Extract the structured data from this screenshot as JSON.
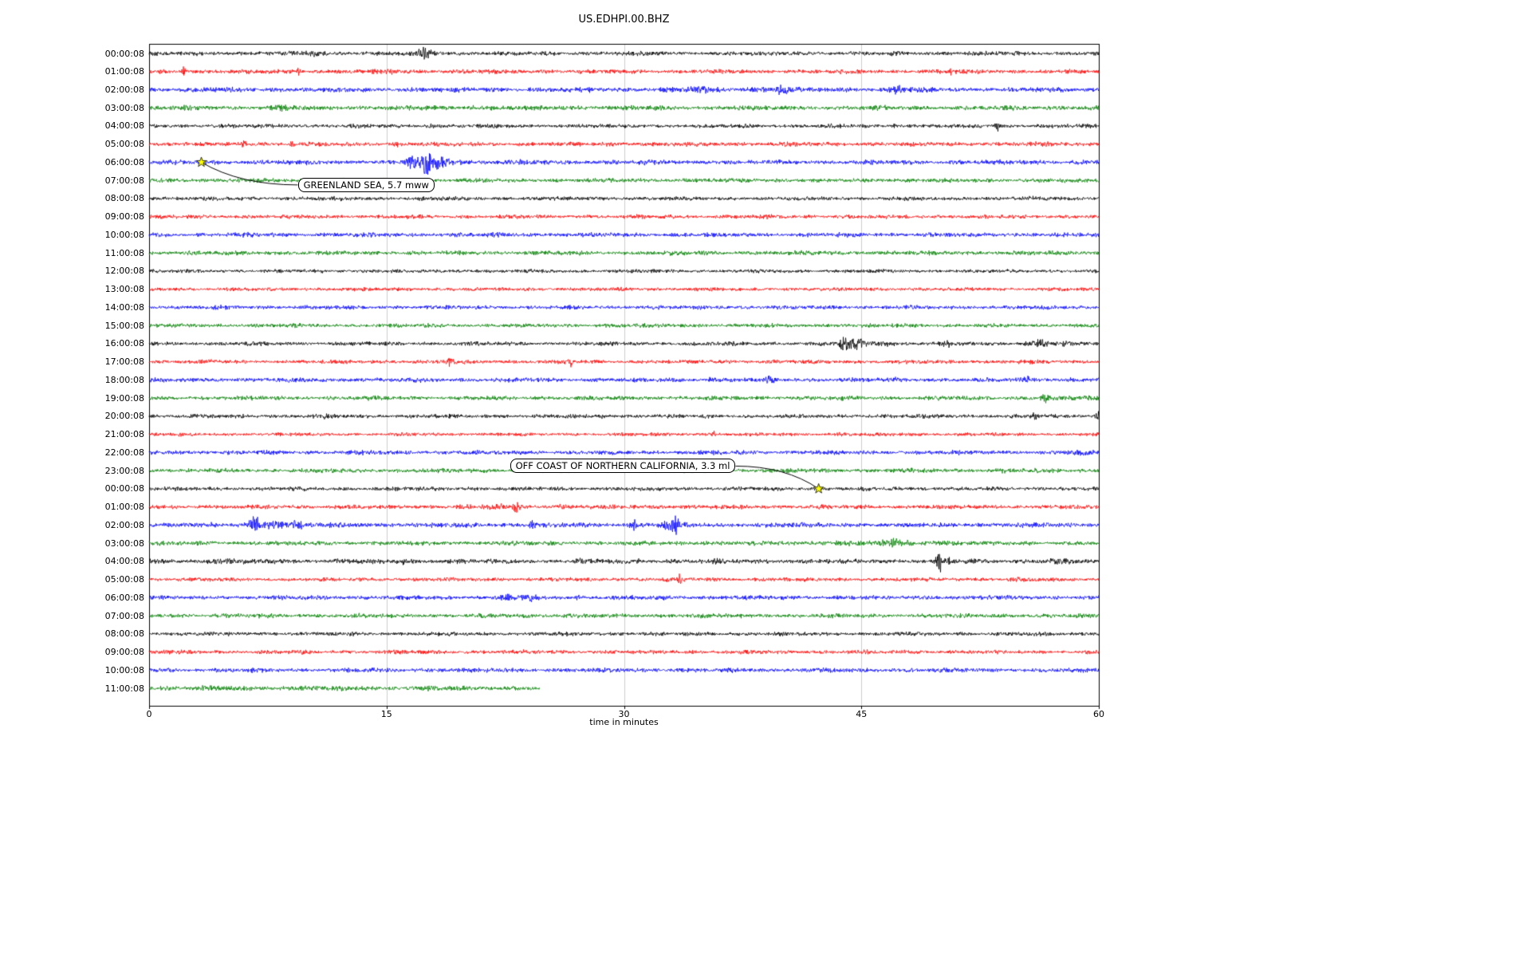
{
  "chart_data": {
    "type": "line",
    "subtype": "seismogram-dayplot",
    "title": "US.EDHPI.00.BHZ",
    "xlabel": "time in minutes",
    "xlim": [
      0,
      60
    ],
    "xticks": [
      0,
      15,
      30,
      45,
      60
    ],
    "grid": true,
    "grid_color": "#cccccc",
    "axis_color": "#000000",
    "background": "#ffffff",
    "event_marker_color": "#ffff00",
    "color_map": {
      "k": "#000000",
      "r": "#ff0000",
      "b": "#0000ff",
      "g": "#008000"
    },
    "rows": [
      {
        "label": "00:00:08",
        "color": "k",
        "amp": 2.2,
        "bursts": [
          [
            10.4,
            4,
            0.4
          ],
          [
            13.6,
            3,
            0.25
          ],
          [
            17.4,
            6,
            0.45
          ],
          [
            30,
            2.5,
            0.3
          ]
        ]
      },
      {
        "label": "01:00:08",
        "color": "r",
        "amp": 2.2,
        "bursts": [
          [
            2.2,
            8,
            0.12
          ],
          [
            9.4,
            7,
            0.12
          ],
          [
            15.2,
            4,
            0.25
          ],
          [
            50.7,
            4,
            0.3
          ]
        ]
      },
      {
        "label": "02:00:08",
        "color": "b",
        "amp": 2.4,
        "bursts": [
          [
            28,
            3,
            0.5
          ],
          [
            34.5,
            4,
            1.2
          ],
          [
            38.5,
            4,
            0.6
          ],
          [
            39.8,
            6,
            0.5
          ],
          [
            44,
            3,
            0.4
          ],
          [
            47.3,
            5,
            0.35
          ]
        ]
      },
      {
        "label": "03:00:08",
        "color": "g",
        "amp": 2.4,
        "bursts": [
          [
            8.6,
            3.5,
            0.9
          ],
          [
            20.4,
            4.5,
            0.18
          ]
        ]
      },
      {
        "label": "04:00:08",
        "color": "k",
        "amp": 2.0,
        "bursts": [
          [
            17.8,
            3.5,
            0.3
          ],
          [
            47.1,
            5,
            0.12
          ],
          [
            53.6,
            6,
            0.18
          ]
        ]
      },
      {
        "label": "05:00:08",
        "color": "r",
        "amp": 2.2,
        "bursts": [
          [
            6,
            4.5,
            0.18
          ],
          [
            9,
            5,
            0.12
          ],
          [
            15.6,
            4.5,
            0.18
          ],
          [
            29,
            3,
            0.3
          ]
        ]
      },
      {
        "label": "06:00:08",
        "color": "b",
        "amp": 2.4,
        "bursts": [
          [
            16.6,
            8,
            0.35
          ],
          [
            17.5,
            12,
            0.4
          ],
          [
            18.4,
            7,
            0.5
          ],
          [
            19.5,
            4,
            0.6
          ]
        ]
      },
      {
        "label": "07:00:08",
        "color": "g",
        "amp": 2.2,
        "bursts": [
          [
            3,
            3,
            0.4
          ]
        ]
      },
      {
        "label": "08:00:08",
        "color": "k",
        "amp": 2.0,
        "bursts": [
          [
            8,
            2.5,
            0.3
          ],
          [
            17,
            2.5,
            0.3
          ]
        ]
      },
      {
        "label": "09:00:08",
        "color": "r",
        "amp": 2.0,
        "bursts": []
      },
      {
        "label": "10:00:08",
        "color": "b",
        "amp": 2.2,
        "bursts": []
      },
      {
        "label": "11:00:08",
        "color": "g",
        "amp": 2.2,
        "bursts": []
      },
      {
        "label": "12:00:08",
        "color": "k",
        "amp": 1.8,
        "bursts": []
      },
      {
        "label": "13:00:08",
        "color": "r",
        "amp": 1.8,
        "bursts": []
      },
      {
        "label": "14:00:08",
        "color": "b",
        "amp": 2.0,
        "bursts": []
      },
      {
        "label": "15:00:08",
        "color": "g",
        "amp": 2.0,
        "bursts": []
      },
      {
        "label": "16:00:08",
        "color": "k",
        "amp": 2.0,
        "bursts": [
          [
            43.9,
            14,
            0.25
          ],
          [
            44.8,
            7,
            0.5
          ],
          [
            46.5,
            4,
            0.8
          ],
          [
            50.4,
            3.5,
            0.3
          ],
          [
            56.2,
            4.5,
            0.9
          ],
          [
            58,
            3,
            0.5
          ]
        ]
      },
      {
        "label": "17:00:08",
        "color": "r",
        "amp": 2.0,
        "bursts": [
          [
            19,
            6,
            0.18
          ],
          [
            23,
            3,
            0.3
          ],
          [
            26.6,
            7,
            0.18
          ]
        ]
      },
      {
        "label": "18:00:08",
        "color": "b",
        "amp": 2.2,
        "bursts": [
          [
            35.6,
            7,
            0.18
          ],
          [
            39.2,
            4,
            0.4
          ],
          [
            47,
            3,
            0.3
          ],
          [
            55.4,
            5,
            0.3
          ],
          [
            58.2,
            3.5,
            0.3
          ]
        ]
      },
      {
        "label": "19:00:08",
        "color": "g",
        "amp": 2.2,
        "bursts": [
          [
            56.6,
            6,
            0.3
          ],
          [
            59.3,
            3.5,
            0.3
          ]
        ]
      },
      {
        "label": "20:00:08",
        "color": "k",
        "amp": 2.0,
        "bursts": [
          [
            10.9,
            3,
            0.3
          ],
          [
            28.6,
            5,
            0.12
          ],
          [
            55.9,
            4,
            0.3
          ],
          [
            59.9,
            8,
            0.15
          ]
        ]
      },
      {
        "label": "21:00:08",
        "color": "r",
        "amp": 1.8,
        "bursts": [
          [
            35.7,
            5,
            0.12
          ],
          [
            43.9,
            3,
            0.25
          ]
        ]
      },
      {
        "label": "22:00:08",
        "color": "b",
        "amp": 2.2,
        "bursts": [
          [
            58.9,
            4.5,
            0.4
          ]
        ]
      },
      {
        "label": "23:00:08",
        "color": "g",
        "amp": 2.2,
        "bursts": [
          [
            54.2,
            3,
            0.4
          ]
        ]
      },
      {
        "label": "00:00:08",
        "color": "k",
        "amp": 2.0,
        "bursts": [
          [
            20.2,
            3,
            0.3
          ],
          [
            57.6,
            3.5,
            0.3
          ]
        ]
      },
      {
        "label": "01:00:08",
        "color": "r",
        "amp": 2.2,
        "bursts": [
          [
            19.7,
            6,
            0.25
          ],
          [
            22,
            5,
            0.35
          ],
          [
            23.2,
            6,
            0.25
          ],
          [
            26,
            3,
            0.3
          ],
          [
            32.2,
            3.5,
            0.3
          ]
        ]
      },
      {
        "label": "02:00:08",
        "color": "b",
        "amp": 2.4,
        "bursts": [
          [
            6.7,
            11,
            0.35
          ],
          [
            7.8,
            7,
            0.7
          ],
          [
            9.4,
            5,
            0.5
          ],
          [
            24.2,
            8,
            0.25
          ],
          [
            30.6,
            7,
            0.25
          ],
          [
            32.6,
            7,
            0.35
          ],
          [
            33.2,
            11,
            0.25
          ]
        ]
      },
      {
        "label": "03:00:08",
        "color": "g",
        "amp": 2.2,
        "bursts": [
          [
            35,
            3,
            0.6
          ],
          [
            43,
            3.5,
            1.2
          ],
          [
            47,
            4.5,
            1.6
          ],
          [
            50.5,
            3.5,
            0.8
          ]
        ]
      },
      {
        "label": "04:00:08",
        "color": "k",
        "amp": 2.4,
        "bursts": [
          [
            4.5,
            4,
            0.7
          ],
          [
            12,
            3,
            0.4
          ],
          [
            16,
            4,
            0.3
          ],
          [
            18.9,
            5,
            0.2
          ],
          [
            27.1,
            4.5,
            0.18
          ],
          [
            31,
            3,
            0.3
          ],
          [
            49.9,
            13,
            0.18
          ],
          [
            50.6,
            6,
            0.3
          ],
          [
            57.1,
            4,
            0.25
          ]
        ]
      },
      {
        "label": "05:00:08",
        "color": "r",
        "amp": 2.0,
        "bursts": [
          [
            33.5,
            6,
            0.12
          ]
        ]
      },
      {
        "label": "06:00:08",
        "color": "b",
        "amp": 2.2,
        "bursts": [
          [
            22.6,
            4.5,
            0.5
          ],
          [
            24.1,
            4.5,
            0.4
          ],
          [
            27,
            3,
            0.3
          ]
        ]
      },
      {
        "label": "07:00:08",
        "color": "g",
        "amp": 2.2,
        "bursts": []
      },
      {
        "label": "08:00:08",
        "color": "k",
        "amp": 2.0,
        "bursts": []
      },
      {
        "label": "09:00:08",
        "color": "r",
        "amp": 2.0,
        "bursts": []
      },
      {
        "label": "10:00:08",
        "color": "b",
        "amp": 2.2,
        "bursts": []
      },
      {
        "label": "11:00:08",
        "color": "g",
        "amp": 2.6,
        "end": 24.7,
        "bursts": []
      }
    ],
    "events": [
      {
        "text": "GREENLAND SEA, 5.7 mww",
        "row": 6,
        "minute": 3.3,
        "label_row": 7.25,
        "label_minute": 9.4
      },
      {
        "text": "OFF COAST OF NORTHERN CALIFORNIA, 3.3 ml",
        "row": 24,
        "minute": 42.3,
        "label_row": 22.75,
        "label_minute": 22.8
      }
    ]
  }
}
